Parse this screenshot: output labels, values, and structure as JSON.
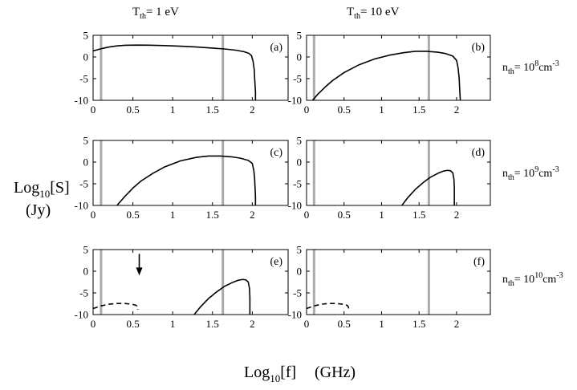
{
  "figure": {
    "col_headers": [
      {
        "main": "T",
        "sub": "th",
        "rest": "= 1 eV"
      },
      {
        "main": "T",
        "sub": "th",
        "rest": "= 10 eV"
      }
    ],
    "row_labels": [
      {
        "main": "n",
        "sub": "th",
        "value": "= 10",
        "exp": "8",
        "unit": "cm",
        "unit_exp": "-3"
      },
      {
        "main": "n",
        "sub": "th",
        "value": "= 10",
        "exp": "9",
        "unit": "cm",
        "unit_exp": "-3"
      },
      {
        "main": "n",
        "sub": "th",
        "value": "= 10",
        "exp": "10",
        "unit": "cm",
        "unit_exp": "-3"
      }
    ],
    "ylabel": {
      "main": "Log",
      "sub": "10",
      "rest": "[S]",
      "line2": "(Jy)"
    },
    "xlabel": {
      "main": "Log",
      "sub": "10",
      "rest": "[f]",
      "unit": "(GHz)"
    }
  },
  "colors": {
    "curve": "#000000",
    "vline": "#aaaaaa",
    "axis": "#000000"
  },
  "chart_data": [
    {
      "type": "line",
      "panel_label": "(a)",
      "xlim": [
        0,
        2.45
      ],
      "ylim": [
        -10,
        5
      ],
      "xticks": [
        0,
        0.5,
        1,
        1.5,
        2
      ],
      "xticklabels": [
        "0",
        "0.5",
        "1",
        "1.5",
        "2"
      ],
      "show_xticklabels": true,
      "yticks": [
        5,
        0,
        -5,
        -10
      ],
      "yticklabels": [
        "5",
        "0",
        "-5",
        "-10"
      ],
      "vlines": [
        0.1,
        1.63
      ],
      "series": [
        {
          "style": "solid",
          "x": [
            0,
            0.1,
            0.2,
            0.3,
            0.4,
            0.55,
            0.7,
            0.9,
            1.1,
            1.3,
            1.5,
            1.65,
            1.8,
            1.9,
            1.96,
            1.99,
            2.01,
            2.025,
            2.03,
            2.04,
            2.04
          ],
          "y": [
            1.4,
            1.9,
            2.3,
            2.55,
            2.7,
            2.75,
            2.72,
            2.62,
            2.48,
            2.3,
            2.05,
            1.85,
            1.55,
            1.2,
            0.8,
            0.3,
            -1,
            -3,
            -5,
            -8,
            -10
          ]
        }
      ]
    },
    {
      "type": "line",
      "panel_label": "(b)",
      "xlim": [
        0,
        2.45
      ],
      "ylim": [
        -10,
        5
      ],
      "xticks": [
        0,
        0.5,
        1,
        1.5,
        2
      ],
      "xticklabels": [
        "0",
        "0.5",
        "1",
        "1.5",
        "2"
      ],
      "show_xticklabels": true,
      "yticks": [
        5,
        0,
        -5,
        -10
      ],
      "yticklabels": [
        "5",
        "0",
        "-5",
        "-10"
      ],
      "vlines": [
        0.1,
        1.63
      ],
      "series": [
        {
          "style": "solid",
          "x": [
            0.08,
            0.15,
            0.25,
            0.35,
            0.5,
            0.7,
            0.9,
            1.1,
            1.3,
            1.45,
            1.6,
            1.75,
            1.85,
            1.95,
            2.0,
            2.02,
            2.035,
            2.04,
            2.045,
            2.05
          ],
          "y": [
            -10,
            -8.6,
            -6.9,
            -5.4,
            -3.6,
            -1.8,
            -0.5,
            0.4,
            1.0,
            1.3,
            1.3,
            1.1,
            0.8,
            0.2,
            -0.8,
            -2.5,
            -5,
            -7,
            -8.5,
            -10
          ]
        }
      ]
    },
    {
      "type": "line",
      "panel_label": "(c)",
      "xlim": [
        0,
        2.45
      ],
      "ylim": [
        -10,
        5
      ],
      "xticks": [
        0,
        0.5,
        1,
        1.5,
        2
      ],
      "xticklabels": [
        "0",
        "0.5",
        "1",
        "1.5",
        "2"
      ],
      "show_xticklabels": true,
      "yticks": [
        5,
        0,
        -5,
        -10
      ],
      "yticklabels": [
        "5",
        "0",
        "-5",
        "-10"
      ],
      "vlines": [
        0.1,
        1.63
      ],
      "series": [
        {
          "style": "solid",
          "x": [
            0.3,
            0.4,
            0.5,
            0.6,
            0.75,
            0.9,
            1.1,
            1.3,
            1.45,
            1.6,
            1.75,
            1.85,
            1.95,
            2.0,
            2.02,
            2.03,
            2.035,
            2.04,
            2.04
          ],
          "y": [
            -10,
            -7.9,
            -6.0,
            -4.4,
            -2.6,
            -1.1,
            0.3,
            1.1,
            1.4,
            1.4,
            1.2,
            0.9,
            0.4,
            -0.3,
            -2,
            -4,
            -6,
            -8,
            -10
          ]
        }
      ]
    },
    {
      "type": "line",
      "panel_label": "(d)",
      "xlim": [
        0,
        2.45
      ],
      "ylim": [
        -10,
        5
      ],
      "xticks": [
        0,
        0.5,
        1,
        1.5,
        2
      ],
      "xticklabels": [
        "0",
        "0.5",
        "1",
        "1.5",
        "2"
      ],
      "show_xticklabels": true,
      "yticks": [
        5,
        0,
        -5,
        -10
      ],
      "yticklabels": [
        "5",
        "0",
        "-5",
        "-10"
      ],
      "vlines": [
        0.1,
        1.63
      ],
      "series": [
        {
          "style": "solid",
          "x": [
            1.27,
            1.35,
            1.45,
            1.55,
            1.65,
            1.75,
            1.82,
            1.88,
            1.92,
            1.95,
            1.965,
            1.97,
            1.97,
            1.97
          ],
          "y": [
            -10,
            -8.2,
            -6.3,
            -4.8,
            -3.5,
            -2.6,
            -2.1,
            -1.9,
            -2.0,
            -2.5,
            -4,
            -6,
            -8,
            -10
          ]
        }
      ]
    },
    {
      "type": "line",
      "panel_label": "(e)",
      "xlim": [
        0,
        2.45
      ],
      "ylim": [
        -10,
        5
      ],
      "xticks": [
        0,
        0.5,
        1,
        1.5,
        2
      ],
      "xticklabels": [
        "0",
        "0.5",
        "1",
        "1.5",
        "2"
      ],
      "show_xticklabels": true,
      "yticks": [
        5,
        0,
        -5,
        -10
      ],
      "yticklabels": [
        "5",
        "0",
        "-5",
        "-10"
      ],
      "vlines": [
        0.1,
        1.63
      ],
      "arrow": {
        "x": 0.58,
        "y_from": 4.0,
        "y_to": -1.0
      },
      "series": [
        {
          "style": "dashed",
          "x": [
            0,
            0.1,
            0.2,
            0.3,
            0.4,
            0.48,
            0.53,
            0.55,
            0.56,
            0.56
          ],
          "y": [
            -8.6,
            -8.0,
            -7.6,
            -7.45,
            -7.45,
            -7.6,
            -7.8,
            -8.0,
            -8.4,
            -8.9
          ]
        },
        {
          "style": "solid",
          "x": [
            1.27,
            1.35,
            1.45,
            1.55,
            1.65,
            1.75,
            1.82,
            1.88,
            1.92,
            1.95,
            1.965,
            1.97,
            1.97,
            1.97
          ],
          "y": [
            -10,
            -8.2,
            -6.3,
            -4.8,
            -3.5,
            -2.6,
            -2.1,
            -1.9,
            -2.0,
            -2.5,
            -4,
            -6,
            -8,
            -10
          ]
        }
      ]
    },
    {
      "type": "line",
      "panel_label": "(f)",
      "xlim": [
        0,
        2.45
      ],
      "ylim": [
        -10,
        5
      ],
      "xticks": [
        0,
        0.5,
        1,
        1.5,
        2
      ],
      "xticklabels": [
        "0",
        "0.5",
        "1",
        "1.5",
        "2"
      ],
      "show_xticklabels": true,
      "yticks": [
        5,
        0,
        -5,
        -10
      ],
      "yticklabels": [
        "5",
        "0",
        "-5",
        "-10"
      ],
      "vlines": [
        0.1,
        1.63
      ],
      "series": [
        {
          "style": "dashed",
          "x": [
            0,
            0.1,
            0.2,
            0.3,
            0.4,
            0.48,
            0.53,
            0.55,
            0.56,
            0.56
          ],
          "y": [
            -8.6,
            -8.0,
            -7.6,
            -7.45,
            -7.45,
            -7.6,
            -7.8,
            -8.0,
            -8.4,
            -8.9
          ]
        }
      ]
    }
  ]
}
